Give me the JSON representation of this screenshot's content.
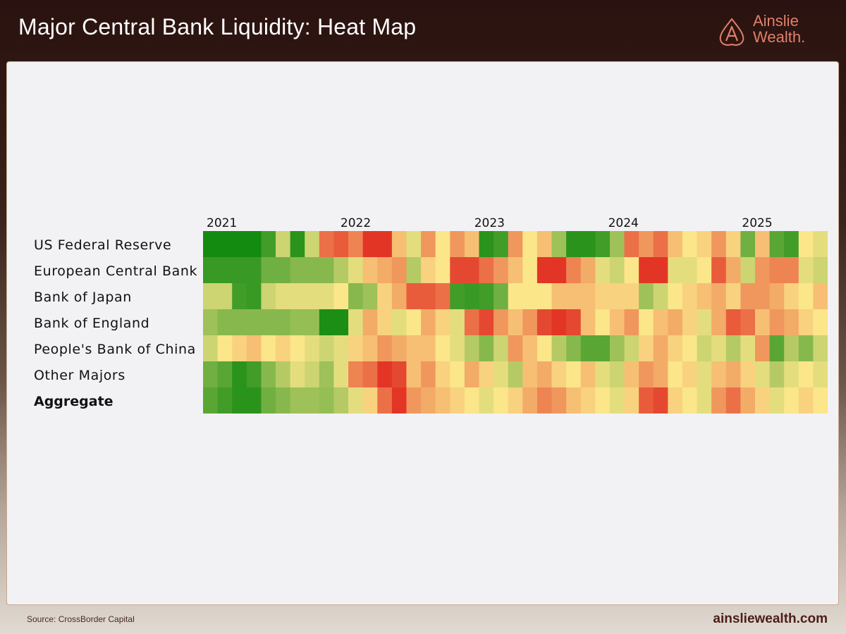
{
  "header": {
    "title": "Major Central Bank Liquidity: Heat Map"
  },
  "logo": {
    "line1": "Ainslie",
    "line2": "Wealth.",
    "icon": "ainslie-a-icon",
    "color": "#e08068"
  },
  "footer": {
    "source": "Source: CrossBorder Capital",
    "url": "ainsliewealth.com"
  },
  "chart_data": {
    "type": "heatmap",
    "title": "Major Central Bank Liquidity: Heat Map",
    "x_ticks": [
      "2021",
      "2022",
      "2023",
      "2024",
      "2025"
    ],
    "x_range": [
      "2021-01",
      "2025-08"
    ],
    "rows": [
      "US Federal Reserve",
      "European Central Bank",
      "Bank of Japan",
      "Bank of England",
      "People's Bank of China",
      "Other Majors",
      "Aggregate"
    ],
    "bold_rows": [
      "Aggregate"
    ],
    "color_scale": {
      "low": "#e0211a",
      "mid": "#fbe68a",
      "high": "#138a10"
    },
    "value_scale": "1 = strong liquidity growth (green), 0.5 = neutral (yellow), 0 = contraction (red)",
    "values": [
      [
        1.0,
        1.0,
        1.0,
        1.0,
        0.9,
        0.6,
        0.95,
        0.6,
        0.2,
        0.15,
        0.25,
        0.05,
        0.05,
        0.4,
        0.55,
        0.3,
        0.5,
        0.3,
        0.4,
        0.95,
        0.9,
        0.3,
        0.5,
        0.4,
        0.7,
        0.95,
        0.95,
        0.9,
        0.7,
        0.2,
        0.3,
        0.2,
        0.4,
        0.5,
        0.45,
        0.3,
        0.45,
        0.8,
        0.4,
        0.85,
        0.9,
        0.5,
        0.55
      ],
      [
        0.92,
        0.92,
        0.92,
        0.92,
        0.8,
        0.8,
        0.75,
        0.75,
        0.75,
        0.65,
        0.55,
        0.4,
        0.35,
        0.3,
        0.65,
        0.45,
        0.5,
        0.1,
        0.1,
        0.2,
        0.3,
        0.4,
        0.5,
        0.05,
        0.05,
        0.25,
        0.35,
        0.55,
        0.6,
        0.5,
        0.05,
        0.05,
        0.55,
        0.55,
        0.5,
        0.15,
        0.35,
        0.6,
        0.3,
        0.25,
        0.25,
        0.55,
        0.6
      ],
      [
        0.6,
        0.6,
        0.9,
        0.92,
        0.6,
        0.55,
        0.55,
        0.55,
        0.55,
        0.5,
        0.75,
        0.7,
        0.45,
        0.35,
        0.15,
        0.15,
        0.2,
        0.9,
        0.92,
        0.9,
        0.8,
        0.5,
        0.5,
        0.5,
        0.4,
        0.4,
        0.4,
        0.45,
        0.45,
        0.45,
        0.7,
        0.6,
        0.5,
        0.45,
        0.4,
        0.35,
        0.45,
        0.3,
        0.3,
        0.35,
        0.45,
        0.5,
        0.4
      ],
      [
        0.7,
        0.75,
        0.75,
        0.75,
        0.75,
        0.75,
        0.72,
        0.72,
        0.98,
        0.98,
        0.55,
        0.35,
        0.45,
        0.55,
        0.5,
        0.35,
        0.45,
        0.55,
        0.2,
        0.1,
        0.3,
        0.4,
        0.3,
        0.1,
        0.05,
        0.1,
        0.4,
        0.5,
        0.4,
        0.3,
        0.5,
        0.4,
        0.35,
        0.45,
        0.55,
        0.35,
        0.15,
        0.2,
        0.4,
        0.3,
        0.35,
        0.45,
        0.5
      ],
      [
        0.6,
        0.5,
        0.45,
        0.4,
        0.5,
        0.45,
        0.5,
        0.55,
        0.6,
        0.55,
        0.45,
        0.4,
        0.3,
        0.35,
        0.4,
        0.4,
        0.5,
        0.55,
        0.65,
        0.75,
        0.6,
        0.3,
        0.4,
        0.5,
        0.65,
        0.75,
        0.85,
        0.85,
        0.7,
        0.6,
        0.45,
        0.35,
        0.45,
        0.5,
        0.6,
        0.55,
        0.65,
        0.55,
        0.3,
        0.85,
        0.65,
        0.75,
        0.6
      ],
      [
        0.8,
        0.85,
        0.95,
        0.9,
        0.75,
        0.65,
        0.55,
        0.6,
        0.7,
        0.55,
        0.25,
        0.2,
        0.05,
        0.1,
        0.4,
        0.3,
        0.45,
        0.5,
        0.35,
        0.45,
        0.55,
        0.65,
        0.4,
        0.35,
        0.45,
        0.5,
        0.4,
        0.55,
        0.6,
        0.4,
        0.3,
        0.35,
        0.5,
        0.45,
        0.55,
        0.4,
        0.35,
        0.45,
        0.55,
        0.65,
        0.55,
        0.5,
        0.55
      ],
      [
        0.85,
        0.9,
        0.95,
        0.95,
        0.8,
        0.75,
        0.7,
        0.7,
        0.72,
        0.65,
        0.55,
        0.45,
        0.2,
        0.05,
        0.3,
        0.35,
        0.4,
        0.45,
        0.5,
        0.55,
        0.5,
        0.45,
        0.35,
        0.25,
        0.3,
        0.4,
        0.45,
        0.5,
        0.55,
        0.45,
        0.15,
        0.1,
        0.45,
        0.5,
        0.55,
        0.3,
        0.2,
        0.35,
        0.45,
        0.55,
        0.5,
        0.45,
        0.5
      ]
    ]
  }
}
